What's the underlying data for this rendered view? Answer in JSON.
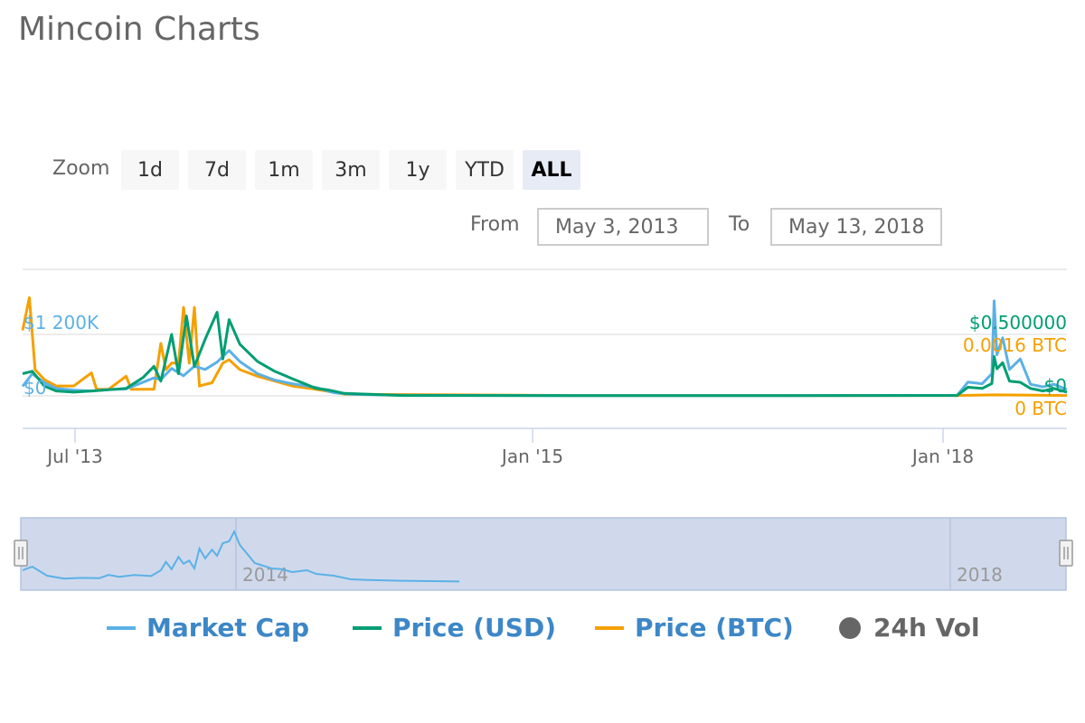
{
  "page": {
    "title": "Mincoin Charts"
  },
  "zoom": {
    "label": "Zoom",
    "buttons": [
      "1d",
      "7d",
      "1m",
      "3m",
      "1y",
      "YTD",
      "ALL"
    ],
    "active": "ALL"
  },
  "range": {
    "from_label": "From",
    "from_value": "May 3, 2013",
    "to_label": "To",
    "to_value": "May 13, 2018"
  },
  "chart_data": {
    "type": "line",
    "title": "Mincoin Charts",
    "x_ticks": [
      "Jul '13",
      "Jan '15",
      "Jan '18"
    ],
    "y_axes": {
      "market_cap": {
        "tick_labels": [
          "$1 200K",
          "$0"
        ],
        "color": "#5bb1e6"
      },
      "price_usd": {
        "tick_labels": [
          "$0.500000",
          "$0"
        ],
        "color": "#009e73"
      },
      "price_btc": {
        "tick_labels": [
          "0.0016 BTC",
          "0 BTC"
        ],
        "color": "#f5a000"
      }
    },
    "navigator_labels": [
      "2014",
      "2018"
    ],
    "series": [
      {
        "name": "Market Cap",
        "color": "#5bb1e6",
        "points": [
          [
            "2013-05-03",
            180
          ],
          [
            "2013-05-20",
            420
          ],
          [
            "2013-06-10",
            250
          ],
          [
            "2013-07-01",
            140
          ],
          [
            "2013-08-01",
            110
          ],
          [
            "2013-09-01",
            90
          ],
          [
            "2013-10-01",
            120
          ],
          [
            "2013-11-01",
            130
          ],
          [
            "2013-12-01",
            260
          ],
          [
            "2013-12-20",
            340
          ],
          [
            "2014-01-01",
            310
          ],
          [
            "2014-01-20",
            520
          ],
          [
            "2014-02-10",
            380
          ],
          [
            "2014-03-01",
            560
          ],
          [
            "2014-03-20",
            500
          ],
          [
            "2014-04-10",
            640
          ],
          [
            "2014-05-01",
            860
          ],
          [
            "2014-05-20",
            650
          ],
          [
            "2014-06-20",
            420
          ],
          [
            "2014-07-20",
            300
          ],
          [
            "2014-08-20",
            230
          ],
          [
            "2014-10-01",
            160
          ],
          [
            "2014-11-01",
            60
          ],
          [
            "2014-12-01",
            30
          ],
          [
            "2015-03-01",
            10
          ],
          [
            "2016-01-01",
            5
          ],
          [
            "2017-01-01",
            5
          ],
          [
            "2017-11-01",
            10
          ],
          [
            "2017-11-20",
            260
          ],
          [
            "2017-12-15",
            230
          ],
          [
            "2018-01-01",
            420
          ],
          [
            "2018-01-05",
            1800
          ],
          [
            "2018-01-10",
            780
          ],
          [
            "2018-01-20",
            1100
          ],
          [
            "2018-02-01",
            500
          ],
          [
            "2018-02-20",
            700
          ],
          [
            "2018-03-10",
            220
          ],
          [
            "2018-04-01",
            170
          ],
          [
            "2018-04-20",
            220
          ],
          [
            "2018-05-13",
            120
          ]
        ]
      },
      {
        "name": "Price (USD)",
        "color": "#009e73",
        "points": [
          [
            "2013-05-03",
            0.18
          ],
          [
            "2013-05-20",
            0.2
          ],
          [
            "2013-06-10",
            0.08
          ],
          [
            "2013-07-01",
            0.04
          ],
          [
            "2013-08-01",
            0.03
          ],
          [
            "2013-09-01",
            0.04
          ],
          [
            "2013-10-01",
            0.05
          ],
          [
            "2013-11-01",
            0.06
          ],
          [
            "2013-12-01",
            0.15
          ],
          [
            "2013-12-20",
            0.24
          ],
          [
            "2014-01-01",
            0.12
          ],
          [
            "2014-01-20",
            0.5
          ],
          [
            "2014-02-01",
            0.18
          ],
          [
            "2014-02-15",
            0.65
          ],
          [
            "2014-03-01",
            0.24
          ],
          [
            "2014-03-20",
            0.46
          ],
          [
            "2014-04-10",
            0.68
          ],
          [
            "2014-04-20",
            0.3
          ],
          [
            "2014-05-01",
            0.62
          ],
          [
            "2014-05-20",
            0.42
          ],
          [
            "2014-06-20",
            0.28
          ],
          [
            "2014-07-20",
            0.2
          ],
          [
            "2014-08-20",
            0.14
          ],
          [
            "2014-10-01",
            0.06
          ],
          [
            "2014-10-20",
            0.05
          ],
          [
            "2014-11-20",
            0.02
          ],
          [
            "2015-03-01",
            0.003
          ],
          [
            "2016-01-01",
            0.002
          ],
          [
            "2017-01-01",
            0.002
          ],
          [
            "2017-11-01",
            0.003
          ],
          [
            "2017-11-20",
            0.07
          ],
          [
            "2017-12-15",
            0.06
          ],
          [
            "2018-01-01",
            0.1
          ],
          [
            "2018-01-05",
            0.32
          ],
          [
            "2018-01-10",
            0.22
          ],
          [
            "2018-01-20",
            0.27
          ],
          [
            "2018-02-01",
            0.12
          ],
          [
            "2018-02-20",
            0.11
          ],
          [
            "2018-03-10",
            0.06
          ],
          [
            "2018-04-01",
            0.04
          ],
          [
            "2018-04-20",
            0.06
          ],
          [
            "2018-05-13",
            0.03
          ]
        ]
      },
      {
        "name": "Price (BTC)",
        "color": "#f5a000",
        "points": [
          [
            "2013-05-03",
            0.002
          ],
          [
            "2013-05-15",
            0.003
          ],
          [
            "2013-05-25",
            0.0008
          ],
          [
            "2013-06-10",
            0.0005
          ],
          [
            "2013-07-01",
            0.0003
          ],
          [
            "2013-08-01",
            0.0003
          ],
          [
            "2013-09-01",
            0.0007
          ],
          [
            "2013-09-10",
            0.0002
          ],
          [
            "2013-10-01",
            0.0002
          ],
          [
            "2013-11-01",
            0.0006
          ],
          [
            "2013-11-10",
            0.0002
          ],
          [
            "2013-12-01",
            0.0002
          ],
          [
            "2013-12-20",
            0.0002
          ],
          [
            "2014-01-01",
            0.0016
          ],
          [
            "2014-01-10",
            0.0008
          ],
          [
            "2014-01-20",
            0.001
          ],
          [
            "2014-02-01",
            0.001
          ],
          [
            "2014-02-10",
            0.0027
          ],
          [
            "2014-02-20",
            0.001
          ],
          [
            "2014-03-01",
            0.0027
          ],
          [
            "2014-03-10",
            0.0003
          ],
          [
            "2014-04-01",
            0.0004
          ],
          [
            "2014-04-20",
            0.001
          ],
          [
            "2014-05-01",
            0.0011
          ],
          [
            "2014-05-20",
            0.0008
          ],
          [
            "2014-06-20",
            0.0006
          ],
          [
            "2014-08-20",
            0.0003
          ],
          [
            "2014-10-01",
            0.0002
          ],
          [
            "2014-11-20",
            5e-05
          ],
          [
            "2016-01-01",
            1e-05
          ],
          [
            "2017-11-01",
            1e-05
          ],
          [
            "2018-01-05",
            3e-05
          ],
          [
            "2018-05-13",
            1e-05
          ]
        ]
      },
      {
        "name": "24h Vol",
        "visible": false,
        "points": []
      }
    ],
    "navigator_series": [
      [
        "2013-05-03",
        0.35
      ],
      [
        "2013-05-20",
        0.45
      ],
      [
        "2013-06-15",
        0.2
      ],
      [
        "2013-07-15",
        0.12
      ],
      [
        "2013-08-15",
        0.14
      ],
      [
        "2013-09-15",
        0.13
      ],
      [
        "2013-10-01",
        0.22
      ],
      [
        "2013-10-20",
        0.17
      ],
      [
        "2013-11-15",
        0.22
      ],
      [
        "2013-12-15",
        0.19
      ],
      [
        "2014-01-01",
        0.35
      ],
      [
        "2014-01-10",
        0.58
      ],
      [
        "2014-01-20",
        0.38
      ],
      [
        "2014-02-01",
        0.72
      ],
      [
        "2014-02-10",
        0.53
      ],
      [
        "2014-02-20",
        0.62
      ],
      [
        "2014-03-01",
        0.4
      ],
      [
        "2014-03-10",
        0.95
      ],
      [
        "2014-03-20",
        0.68
      ],
      [
        "2014-04-01",
        0.92
      ],
      [
        "2014-04-10",
        0.75
      ],
      [
        "2014-04-20",
        1.1
      ],
      [
        "2014-05-01",
        1.15
      ],
      [
        "2014-05-10",
        1.42
      ],
      [
        "2014-05-20",
        1.05
      ],
      [
        "2014-06-15",
        0.55
      ],
      [
        "2014-07-15",
        0.4
      ],
      [
        "2014-08-01",
        0.38
      ],
      [
        "2014-08-20",
        0.3
      ],
      [
        "2014-09-15",
        0.35
      ],
      [
        "2014-10-01",
        0.25
      ],
      [
        "2014-11-01",
        0.2
      ],
      [
        "2014-12-01",
        0.1
      ],
      [
        "2015-01-01",
        0.08
      ],
      [
        "2015-03-01",
        0.06
      ]
    ]
  },
  "legend": [
    {
      "label": "Market Cap",
      "color": "#5bb1e6",
      "marker": "line"
    },
    {
      "label": "Price (USD)",
      "color": "#009e73",
      "marker": "line"
    },
    {
      "label": "Price (BTC)",
      "color": "#f5a000",
      "marker": "line"
    },
    {
      "label": "24h Vol",
      "color": "#666666",
      "marker": "dot",
      "disabled": true
    }
  ]
}
